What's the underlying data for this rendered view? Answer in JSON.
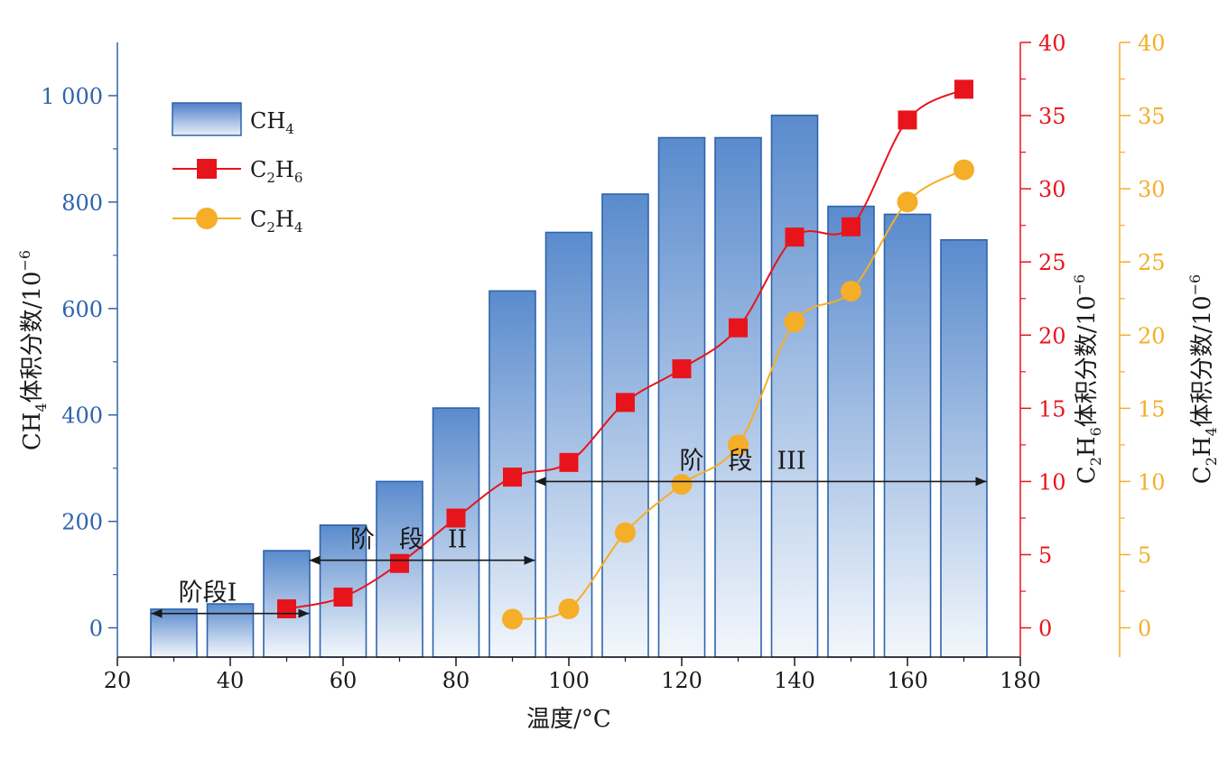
{
  "chart_data": {
    "type": "bar",
    "x": [
      30,
      40,
      50,
      60,
      70,
      80,
      90,
      100,
      110,
      120,
      130,
      140,
      150,
      160,
      170
    ],
    "xlim": [
      20,
      180
    ],
    "xticks": [
      20,
      40,
      60,
      80,
      100,
      120,
      140,
      160,
      180
    ],
    "xlabel": "温度/°C",
    "series": [
      {
        "name": "CH",
        "name_sub": "4",
        "type": "bar",
        "axis": "left",
        "color": "#2e64ad",
        "x": [
          30,
          40,
          50,
          60,
          70,
          80,
          90,
          100,
          110,
          120,
          130,
          140,
          150,
          160,
          170
        ],
        "values": [
          35,
          45,
          145,
          193,
          275,
          413,
          633,
          743,
          815,
          921,
          921,
          963,
          792,
          777,
          729
        ]
      },
      {
        "name": "C",
        "name_sub": "2",
        "name_mid": "H",
        "name_sub2": "6",
        "type": "line",
        "axis": "right1",
        "color": "#e8141c",
        "marker": "square",
        "x": [
          50,
          60,
          70,
          80,
          90,
          100,
          110,
          120,
          130,
          140,
          150,
          160,
          170
        ],
        "values": [
          1.3,
          2.1,
          4.4,
          7.5,
          10.3,
          11.3,
          15.4,
          17.7,
          20.5,
          26.7,
          27.4,
          34.7,
          36.8
        ]
      },
      {
        "name": "C",
        "name_sub": "2",
        "name_mid": "H",
        "name_sub2": "4",
        "type": "line",
        "axis": "right2",
        "color": "#f5ae27",
        "marker": "circle",
        "x": [
          90,
          100,
          110,
          120,
          130,
          140,
          150,
          160,
          170
        ],
        "values": [
          0.6,
          1.3,
          6.5,
          9.8,
          12.5,
          20.9,
          23.0,
          29.1,
          31.3
        ]
      }
    ],
    "left_axis": {
      "ylim": [
        -55,
        1100
      ],
      "ticks": [
        0,
        200,
        400,
        600,
        800,
        1000
      ],
      "tick_labels": [
        "0",
        "200",
        "400",
        "600",
        "800",
        "1 000"
      ],
      "label_pre": "CH",
      "label_sub": "4",
      "label_post": "体积分数/10",
      "label_exp": "−6",
      "color": "#2e64ad"
    },
    "right_axis_1": {
      "ylim": [
        -2,
        40
      ],
      "ticks": [
        0,
        5,
        10,
        15,
        20,
        25,
        30,
        35,
        40
      ],
      "tick_labels": [
        "0",
        "5",
        "10",
        "15",
        "20",
        "25",
        "30",
        "35",
        "40"
      ],
      "label_pre": "C",
      "label_sub": "2",
      "label_mid": "H",
      "label_sub2": "6",
      "label_post": "体积分数/10",
      "label_exp": "−6",
      "color": "#e8141c"
    },
    "right_axis_2": {
      "ylim": [
        -2,
        40
      ],
      "ticks": [
        0,
        5,
        10,
        15,
        20,
        25,
        30,
        35,
        40
      ],
      "tick_labels": [
        "0",
        "5",
        "10",
        "15",
        "20",
        "25",
        "30",
        "35",
        "40"
      ],
      "label_pre": "C",
      "label_sub": "2",
      "label_mid": "H",
      "label_sub2": "4",
      "label_post": "体积分数/10",
      "label_exp": "−6",
      "color": "#f5ae27"
    },
    "stages": [
      {
        "label": "阶段I",
        "x_from": 26,
        "x_to": 54,
        "y_left": 27
      },
      {
        "label": "阶　段　II",
        "x_from": 54,
        "x_to": 94,
        "y_left": 127
      },
      {
        "label": "阶　段　III",
        "x_from": 94,
        "x_to": 174,
        "y_left": 275
      }
    ],
    "legend_position": "top-left"
  }
}
